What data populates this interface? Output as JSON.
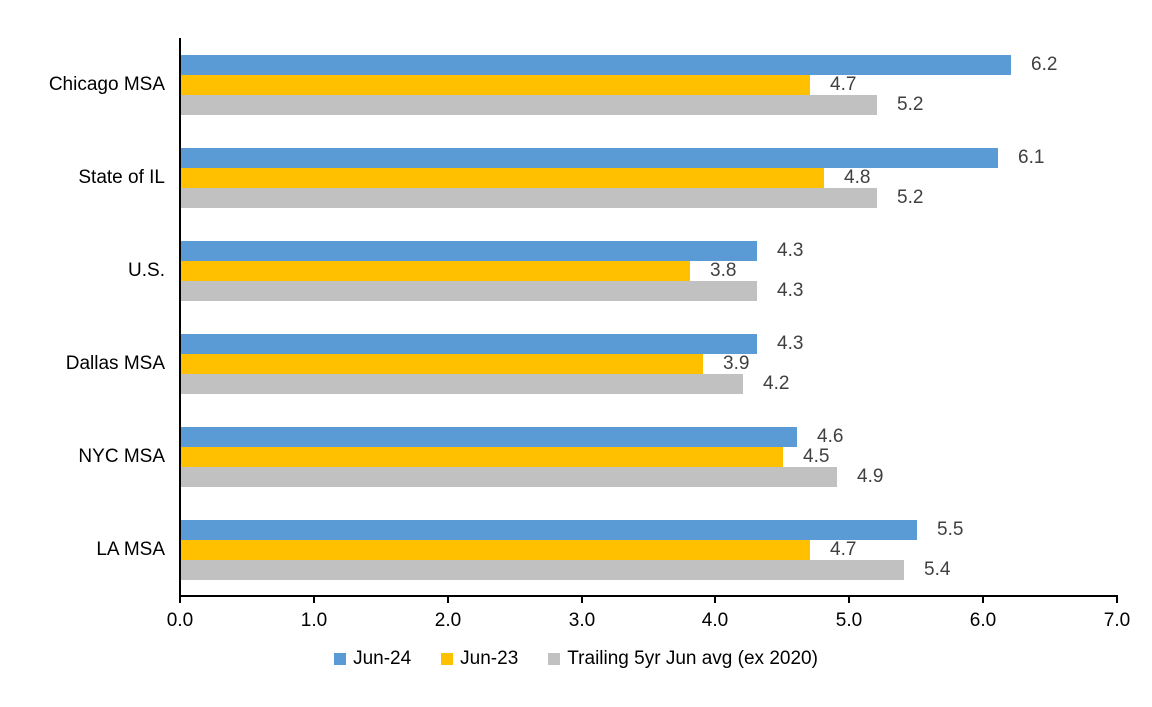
{
  "chart_data": {
    "type": "bar",
    "orientation": "horizontal",
    "title": "",
    "xlabel": "",
    "ylabel": "",
    "categories": [
      "Chicago MSA",
      "State of IL",
      "U.S.",
      "Dallas MSA",
      "NYC MSA",
      "LA MSA"
    ],
    "series": [
      {
        "name": "Jun-24",
        "color": "#5B9BD5",
        "values": [
          6.2,
          6.1,
          4.3,
          4.3,
          4.6,
          5.5
        ]
      },
      {
        "name": "Jun-23",
        "color": "#FFC000",
        "values": [
          4.7,
          4.8,
          3.8,
          3.9,
          4.5,
          4.7
        ]
      },
      {
        "name": "Trailing 5yr Jun avg (ex 2020)",
        "color": "#C1C1C1",
        "values": [
          5.2,
          5.2,
          4.3,
          4.2,
          4.9,
          5.4
        ]
      }
    ],
    "xlim": [
      0.0,
      7.0
    ],
    "x_ticks": [
      "0.0",
      "1.0",
      "2.0",
      "3.0",
      "4.0",
      "5.0",
      "6.0",
      "7.0"
    ],
    "grid": false,
    "data_labels": true,
    "data_label_color": "#404040",
    "axis_color": "#000000",
    "legend_position": "bottom"
  }
}
